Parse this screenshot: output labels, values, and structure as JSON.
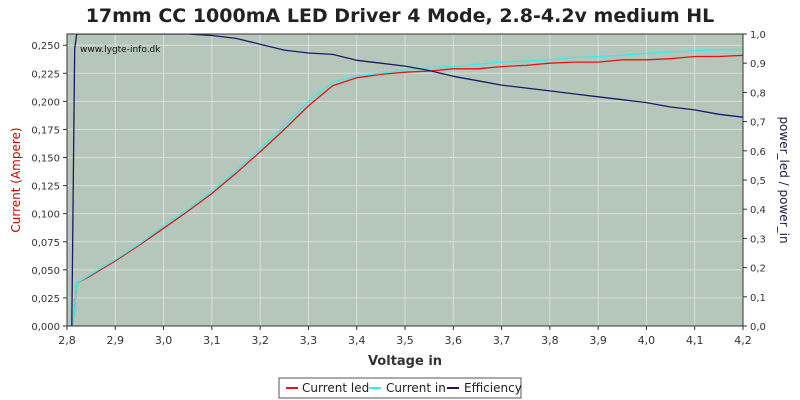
{
  "chart_data": {
    "type": "line",
    "title": "17mm CC 1000mA LED Driver 4 Mode, 2.8-4.2v medium HL",
    "watermark": "www.lygte-info.dk",
    "xlabel": "Voltage in",
    "ylabel_left": "Current (Ampere)",
    "ylabel_right": "power_led / power_in",
    "xlim": [
      2.8,
      4.2
    ],
    "ylim_left": [
      0,
      0.26
    ],
    "ylim_right": [
      0,
      1.0
    ],
    "x_ticks": [
      "2,8",
      "2,9",
      "3,0",
      "3,1",
      "3,2",
      "3,3",
      "3,4",
      "3,5",
      "3,6",
      "3,7",
      "3,8",
      "3,9",
      "4,0",
      "4,1",
      "4,2"
    ],
    "y_left_ticks": [
      "0,000",
      "0,025",
      "0,050",
      "0,075",
      "0,100",
      "0,125",
      "0,150",
      "0,175",
      "0,200",
      "0,225",
      "0,250"
    ],
    "y_right_ticks": [
      "0,0",
      "0,1",
      "0,2",
      "0,3",
      "0,4",
      "0,5",
      "0,6",
      "0,7",
      "0,8",
      "0,9",
      "1,0"
    ],
    "grid": true,
    "legend_position": "bottom-center",
    "colors": {
      "plot_background": "#b5c7bb",
      "grid": "#dddddd",
      "left_axis_label": "#cc0000",
      "right_axis_label": "#1a1a4a"
    },
    "series": [
      {
        "name": "Current led",
        "axis": "left",
        "color": "#ee1111",
        "x": [
          2.81,
          2.815,
          2.82,
          2.85,
          2.9,
          2.95,
          3.0,
          3.05,
          3.1,
          3.15,
          3.2,
          3.25,
          3.3,
          3.35,
          3.4,
          3.45,
          3.5,
          3.55,
          3.6,
          3.65,
          3.7,
          3.75,
          3.8,
          3.85,
          3.9,
          3.95,
          4.0,
          4.05,
          4.1,
          4.15,
          4.2
        ],
        "y": [
          0.0,
          0.01,
          0.038,
          0.045,
          0.058,
          0.072,
          0.087,
          0.102,
          0.118,
          0.136,
          0.155,
          0.175,
          0.196,
          0.214,
          0.221,
          0.224,
          0.226,
          0.227,
          0.229,
          0.229,
          0.231,
          0.232,
          0.234,
          0.235,
          0.235,
          0.237,
          0.237,
          0.238,
          0.24,
          0.24,
          0.241
        ]
      },
      {
        "name": "Current in",
        "axis": "left",
        "color": "#33eeee",
        "x": [
          2.81,
          2.815,
          2.82,
          2.85,
          2.9,
          2.95,
          3.0,
          3.05,
          3.1,
          3.15,
          3.2,
          3.25,
          3.3,
          3.35,
          3.4,
          3.45,
          3.5,
          3.55,
          3.6,
          3.65,
          3.7,
          3.75,
          3.8,
          3.85,
          3.9,
          3.95,
          4.0,
          4.05,
          4.1,
          4.15,
          4.2
        ],
        "y": [
          0.0,
          0.01,
          0.038,
          0.046,
          0.059,
          0.073,
          0.089,
          0.104,
          0.12,
          0.138,
          0.158,
          0.178,
          0.2,
          0.217,
          0.223,
          0.225,
          0.228,
          0.23,
          0.231,
          0.233,
          0.235,
          0.236,
          0.237,
          0.239,
          0.24,
          0.241,
          0.243,
          0.244,
          0.245,
          0.246,
          0.246
        ]
      },
      {
        "name": "Efficiency",
        "axis": "right",
        "color": "#1a1a66",
        "x": [
          2.81,
          2.813,
          2.816,
          2.82,
          2.85,
          2.9,
          2.95,
          3.0,
          3.05,
          3.1,
          3.15,
          3.2,
          3.25,
          3.3,
          3.35,
          3.4,
          3.45,
          3.5,
          3.55,
          3.6,
          3.65,
          3.7,
          3.75,
          3.8,
          3.85,
          3.9,
          3.95,
          4.0,
          4.05,
          4.1,
          4.15,
          4.2
        ],
        "y": [
          0.0,
          0.5,
          0.95,
          1.0,
          1.0,
          1.0,
          1.0,
          1.0,
          1.0,
          0.995,
          0.985,
          0.965,
          0.945,
          0.935,
          0.93,
          0.91,
          0.9,
          0.89,
          0.875,
          0.855,
          0.84,
          0.825,
          0.815,
          0.805,
          0.795,
          0.785,
          0.775,
          0.765,
          0.75,
          0.74,
          0.725,
          0.715
        ]
      }
    ]
  }
}
